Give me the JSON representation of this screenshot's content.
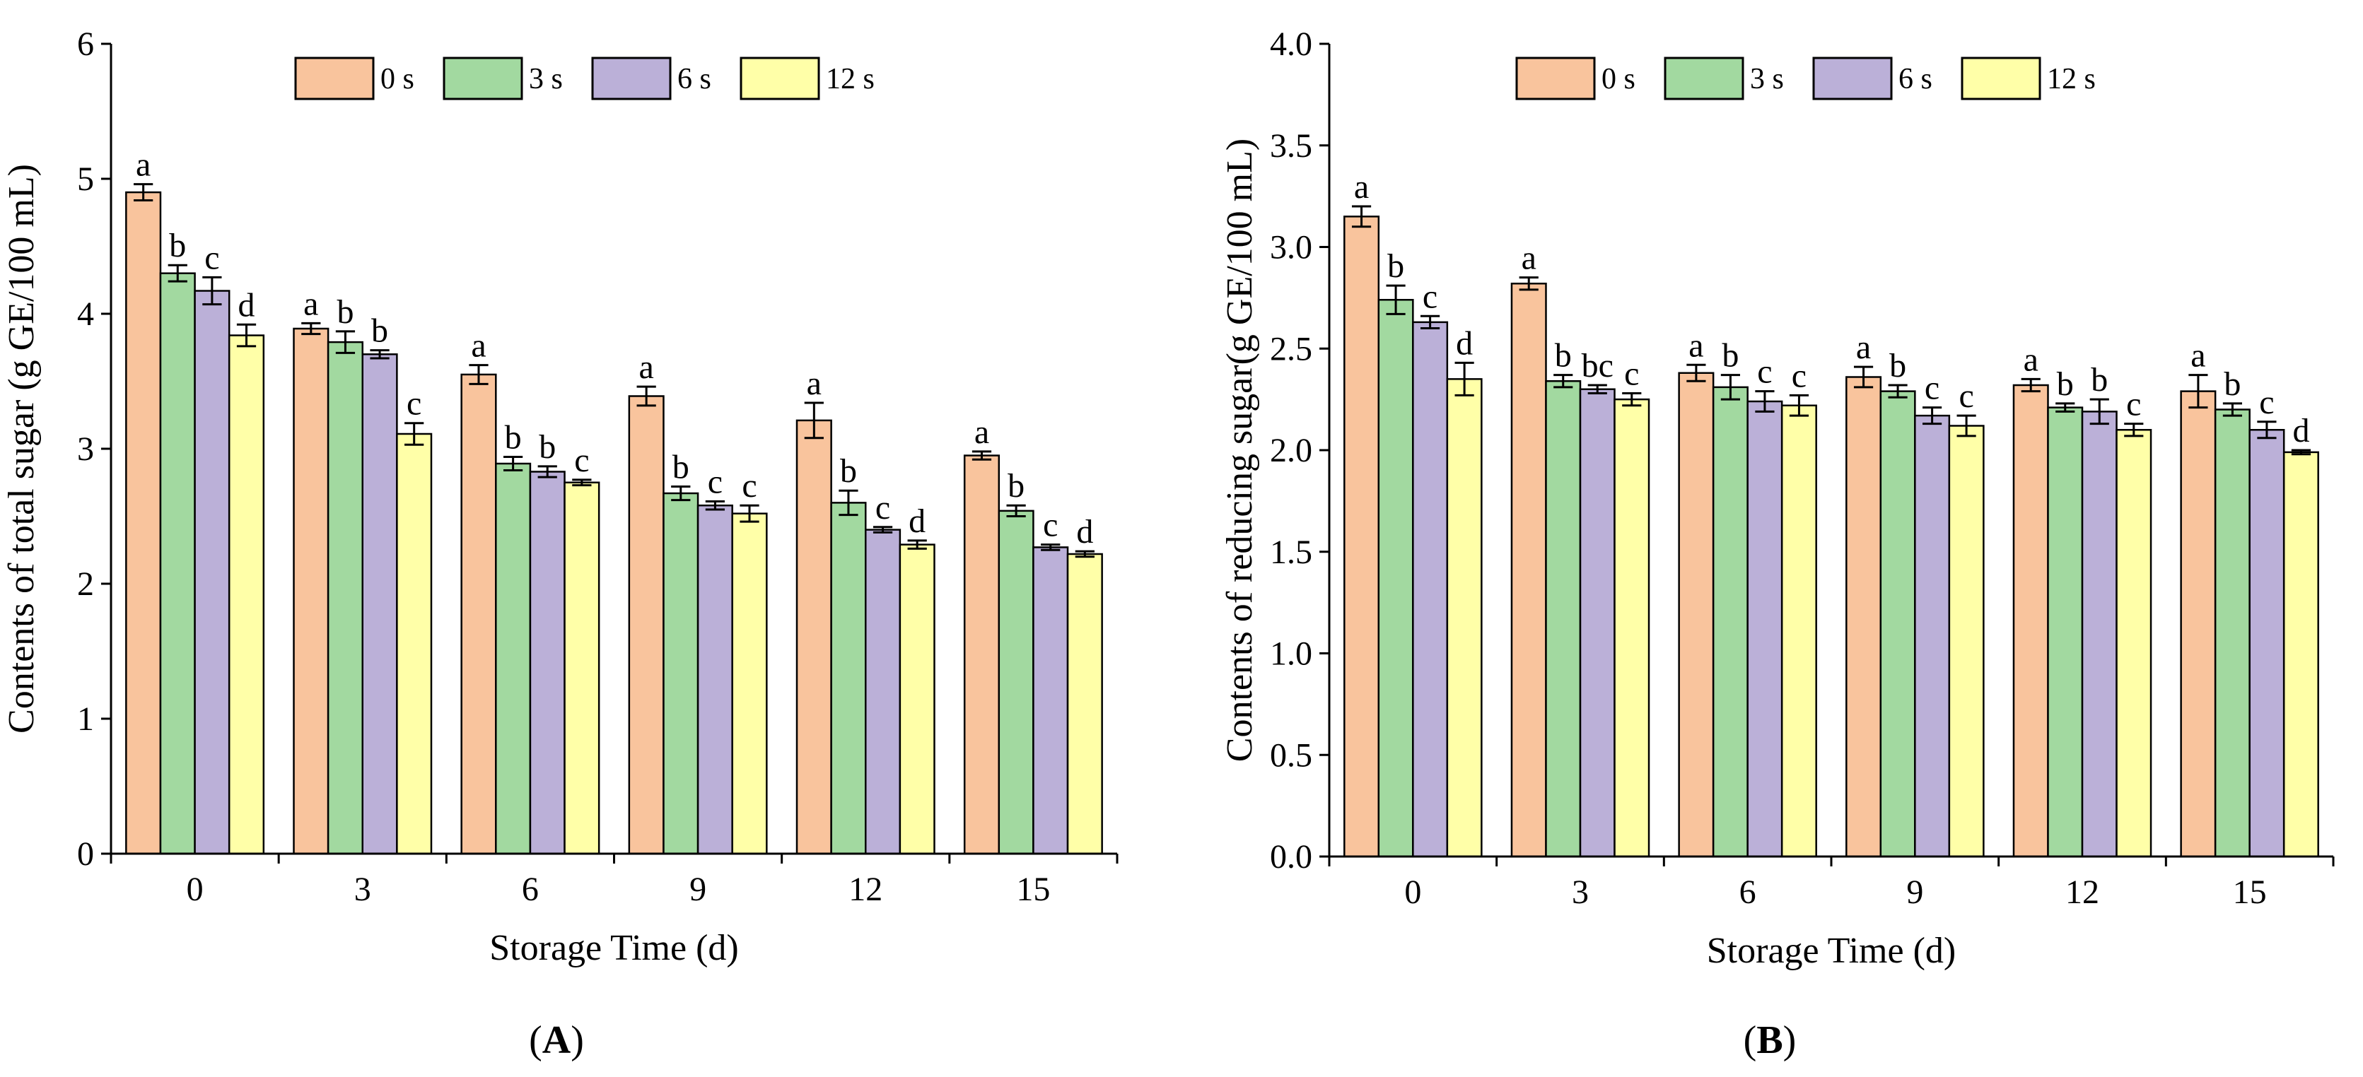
{
  "legend": [
    "0 s",
    "3 s",
    "6 s",
    "12 s"
  ],
  "colors": [
    "#F9C49D",
    "#A2D9A0",
    "#BBB0D8",
    "#FFFFA8"
  ],
  "chart_data": [
    {
      "type": "bar",
      "panel_label_parts": [
        "(",
        "A",
        ")"
      ],
      "xlabel": "Storage Time (d)",
      "ylabel": "Contents of total sugar (g GE/100 mL)",
      "categories": [
        "0",
        "3",
        "6",
        "9",
        "12",
        "15"
      ],
      "ylim": [
        0,
        6
      ],
      "yticks": [
        "0",
        "1",
        "2",
        "3",
        "4",
        "5",
        "6"
      ],
      "ytick_values": [
        0,
        1,
        2,
        3,
        4,
        5,
        6
      ],
      "series": [
        {
          "name": "0 s",
          "values": [
            4.9,
            3.89,
            3.55,
            3.39,
            3.21,
            2.95
          ],
          "errors": [
            0.06,
            0.04,
            0.07,
            0.07,
            0.13,
            0.03
          ],
          "letters": [
            "a",
            "a",
            "a",
            "a",
            "a",
            "a"
          ]
        },
        {
          "name": "3 s",
          "values": [
            4.3,
            3.79,
            2.89,
            2.67,
            2.6,
            2.54
          ],
          "errors": [
            0.06,
            0.08,
            0.05,
            0.05,
            0.09,
            0.04
          ],
          "letters": [
            "b",
            "b",
            "b",
            "b",
            "b",
            "b"
          ]
        },
        {
          "name": "6 s",
          "values": [
            4.17,
            3.7,
            2.83,
            2.58,
            2.4,
            2.27
          ],
          "errors": [
            0.1,
            0.03,
            0.04,
            0.03,
            0.02,
            0.02
          ],
          "letters": [
            "c",
            "b",
            "b",
            "c",
            "c",
            "c"
          ]
        },
        {
          "name": "12 s",
          "values": [
            3.84,
            3.11,
            2.75,
            2.52,
            2.29,
            2.22
          ],
          "errors": [
            0.08,
            0.08,
            0.02,
            0.06,
            0.03,
            0.02
          ],
          "letters": [
            "d",
            "c",
            "c",
            "c",
            "d",
            "d"
          ]
        }
      ]
    },
    {
      "type": "bar",
      "panel_label_parts": [
        "(",
        "B",
        ")"
      ],
      "xlabel": "Storage Time (d)",
      "ylabel": "Contents of reducing sugar(g GE/100 mL)",
      "categories": [
        "0",
        "3",
        "6",
        "9",
        "12",
        "15"
      ],
      "ylim": [
        0,
        4
      ],
      "yticks": [
        "0.0",
        "0.5",
        "1.0",
        "1.5",
        "2.0",
        "2.5",
        "3.0",
        "3.5",
        "4.0"
      ],
      "ytick_values": [
        0,
        0.5,
        1.0,
        1.5,
        2.0,
        2.5,
        3.0,
        3.5,
        4.0
      ],
      "series": [
        {
          "name": "0 s",
          "values": [
            3.15,
            2.82,
            2.38,
            2.36,
            2.32,
            2.29
          ],
          "errors": [
            0.05,
            0.03,
            0.04,
            0.05,
            0.03,
            0.08
          ],
          "letters": [
            "a",
            "a",
            "a",
            "a",
            "a",
            "a"
          ]
        },
        {
          "name": "3 s",
          "values": [
            2.74,
            2.34,
            2.31,
            2.29,
            2.21,
            2.2
          ],
          "errors": [
            0.07,
            0.03,
            0.06,
            0.03,
            0.02,
            0.03
          ],
          "letters": [
            "b",
            "b",
            "b",
            "b",
            "b",
            "b"
          ]
        },
        {
          "name": "6 s",
          "values": [
            2.63,
            2.3,
            2.24,
            2.17,
            2.19,
            2.1
          ],
          "errors": [
            0.03,
            0.02,
            0.05,
            0.04,
            0.06,
            0.04
          ],
          "letters": [
            "c",
            "bc",
            "c",
            "c",
            "b",
            "c"
          ]
        },
        {
          "name": "12 s",
          "values": [
            2.35,
            2.25,
            2.22,
            2.12,
            2.1,
            1.99
          ],
          "errors": [
            0.08,
            0.03,
            0.05,
            0.05,
            0.03,
            0.01
          ],
          "letters": [
            "d",
            "c",
            "c",
            "c",
            "c",
            "d"
          ]
        }
      ]
    }
  ]
}
